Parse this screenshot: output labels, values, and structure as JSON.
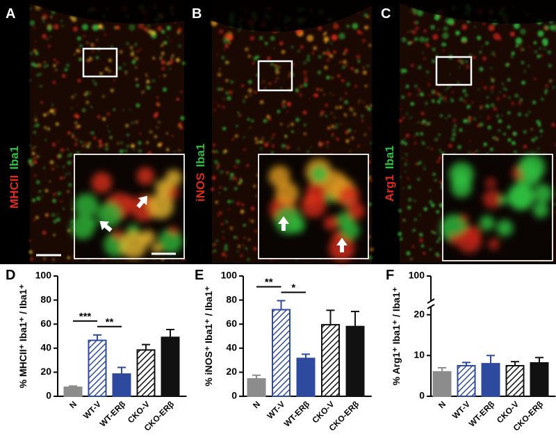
{
  "panels": [
    {
      "letter": "A",
      "stain": "MHCII",
      "marker": "Iba1"
    },
    {
      "letter": "B",
      "stain": "iNOS",
      "marker": "Iba1"
    },
    {
      "letter": "C",
      "stain": "Arg1",
      "marker": "Iba1"
    }
  ],
  "chart_data": [
    {
      "type": "bar",
      "panel": "D",
      "y_label": "% MHCII⁺ Iba1⁺ / Iba1⁺",
      "categories": [
        "N",
        "WT-V",
        "WT-ERβ",
        "CKO-V",
        "CKO-ERβ"
      ],
      "values": [
        7.5,
        46.5,
        18.5,
        38.5,
        49
      ],
      "errors": [
        1,
        4.5,
        5.5,
        4.5,
        6.5
      ],
      "colors": [
        "#8c8c8c",
        "#2e4a9e",
        "#2e4a9e",
        "#111111",
        "#111111"
      ],
      "hatched": [
        false,
        true,
        false,
        true,
        false
      ],
      "ylim": [
        0,
        100
      ],
      "yticks": [
        0,
        20,
        40,
        60,
        80,
        100
      ],
      "significance": [
        {
          "between": [
            "N",
            "WT-V"
          ],
          "label": "***"
        },
        {
          "between": [
            "WT-V",
            "WT-ERβ"
          ],
          "label": "**"
        }
      ]
    },
    {
      "type": "bar",
      "panel": "E",
      "y_label": "% iNOS⁺ Iba1⁺ / Iba1⁺",
      "categories": [
        "N",
        "WT-V",
        "WT-ERβ",
        "CKO-V",
        "CKO-ERβ"
      ],
      "values": [
        14.5,
        72,
        31.5,
        59.5,
        58
      ],
      "errors": [
        3,
        7.5,
        3.5,
        12,
        12.5
      ],
      "colors": [
        "#8c8c8c",
        "#2e4a9e",
        "#2e4a9e",
        "#111111",
        "#111111"
      ],
      "hatched": [
        false,
        true,
        false,
        true,
        false
      ],
      "ylim": [
        0,
        100
      ],
      "yticks": [
        0,
        20,
        40,
        60,
        80,
        100
      ],
      "significance": [
        {
          "between": [
            "N",
            "WT-V"
          ],
          "label": "**"
        },
        {
          "between": [
            "WT-V",
            "WT-ERβ"
          ],
          "label": "*"
        }
      ]
    },
    {
      "type": "bar",
      "panel": "F",
      "y_label": "% Arg1⁺ Iba1⁺ / Iba1⁺",
      "categories": [
        "N",
        "WT-V",
        "WT-ERβ",
        "CKO-V",
        "CKO-ERβ"
      ],
      "values": [
        6,
        7.5,
        8,
        7.5,
        8.2
      ],
      "errors": [
        1,
        0.8,
        2,
        1,
        1.3
      ],
      "colors": [
        "#8c8c8c",
        "#2e4a9e",
        "#2e4a9e",
        "#111111",
        "#111111"
      ],
      "hatched": [
        false,
        true,
        false,
        true,
        false
      ],
      "ylim": [
        0,
        100
      ],
      "axis_break": [
        22,
        90
      ],
      "yticks": [
        0,
        10,
        20,
        100
      ],
      "significance": []
    }
  ]
}
